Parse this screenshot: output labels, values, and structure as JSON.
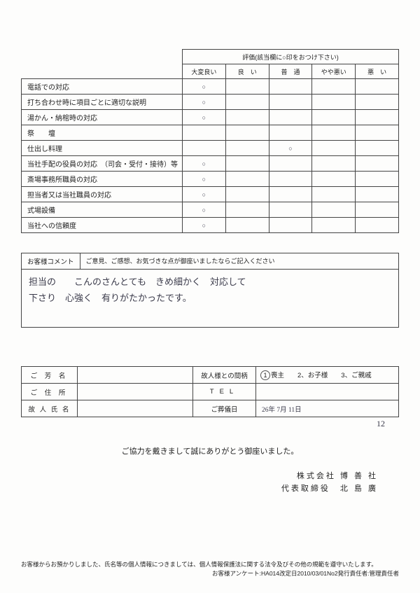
{
  "evalTable": {
    "headerInstruction": "評価(該当欄に○印をおつけ下さい)",
    "ratingHeaders": [
      "大変良い",
      "良　い",
      "普　通",
      "やや悪い",
      "悪　い"
    ],
    "rows": [
      {
        "label": "電話での対応",
        "mark_col": 0
      },
      {
        "label": "打ち合わせ時に項目ごとに適切な説明",
        "mark_col": 0
      },
      {
        "label": "湯かん・納棺時の対応",
        "mark_col": 0
      },
      {
        "label": "祭　　壇",
        "mark_col": null
      },
      {
        "label": "仕出し料理",
        "mark_col": 2
      },
      {
        "label": "当社手配の役員の対応　（司会・受付・接待）等",
        "mark_col": 0
      },
      {
        "label": "斎場事務所職員の対応",
        "mark_col": 0
      },
      {
        "label": "担当者又は当社職員の対応",
        "mark_col": 0
      },
      {
        "label": "式場設備",
        "mark_col": 0
      },
      {
        "label": "当社への信頼度",
        "mark_col": 0
      }
    ]
  },
  "comment": {
    "label": "お客様コメント",
    "instruction": "ご意見、ご感想、お気づきな点が御座いましたならご記入ください",
    "text_line1": "担当の　　こんのさんとても　きめ細かく　対応して",
    "text_line2": "下さり　心強く　有りがたかったです。"
  },
  "info": {
    "name_label": "ご 芳 名",
    "addr_label": "ご 住 所",
    "deceased_label": "故 人 氏 名",
    "relation_label": "故人様との間柄",
    "relation_options": "喪主　　2、お子様　　3、ご親戚",
    "relation_circled": "1",
    "tel_label": "TEL",
    "funeral_date_label": "ご葬儀日",
    "funeral_date_value": "26年 7月 11日",
    "extra_mark": "12"
  },
  "thanks": "ご協力を戴きまして誠にありがとう御座いました。",
  "company_line1": "株式会社 博 善 社",
  "company_line2": "代表取締役　北 島 廣",
  "footer_line1": "お客様からお預かりしました、氏名等の個人情報につきましては、個人情報保護法に関する法令及びその他の規範を遵守いたします。",
  "footer_line2": "お客様アンケート:HA014改定日2010/03/01No2発行責任者:管理責任者",
  "markGlyph": "○",
  "colors": {
    "border": "#444",
    "text": "#222",
    "hand": "#3a3a4a",
    "bg": "#fdfdfc"
  }
}
